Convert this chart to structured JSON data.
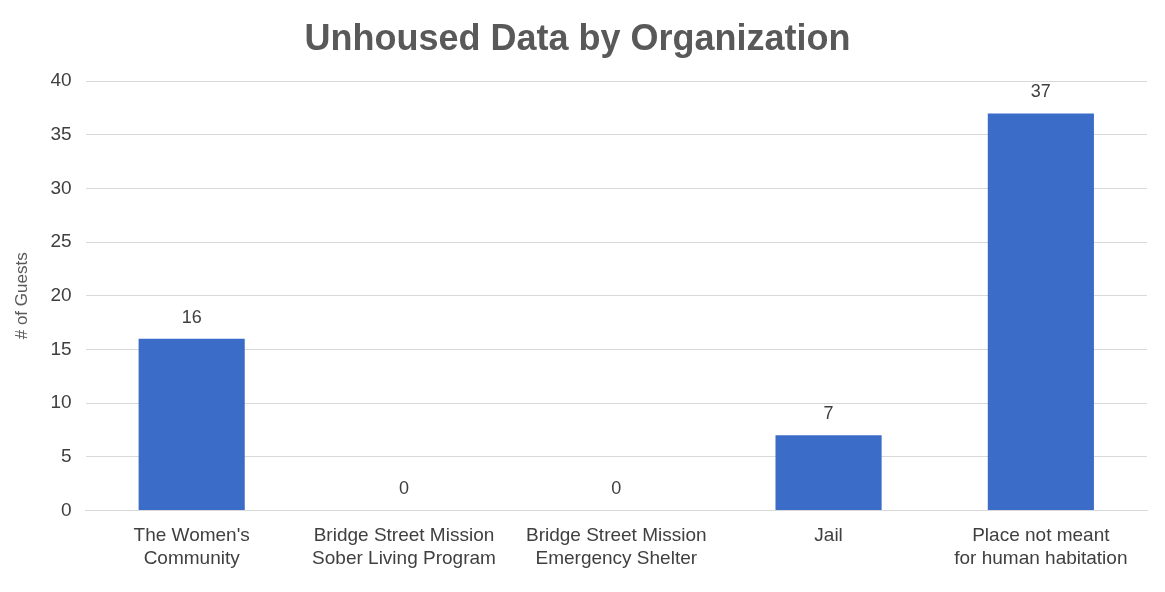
{
  "chart_data": {
    "type": "bar",
    "title": "Unhoused Data by Organization",
    "ylabel": "# of Guests",
    "categories": [
      "The Women's\nCommunity",
      "Bridge Street Mission\nSober Living Program",
      "Bridge Street Mission\nEmergency Shelter",
      "Jail",
      "Place not meant\nfor human habitation"
    ],
    "values": [
      16,
      0,
      0,
      7,
      37
    ],
    "color": "#3b6cc8",
    "ylim": [
      0,
      40
    ],
    "yticks": [
      0,
      5,
      10,
      15,
      20,
      25,
      30,
      35,
      40
    ],
    "grid": "y",
    "data_labels": true,
    "legend": false
  }
}
